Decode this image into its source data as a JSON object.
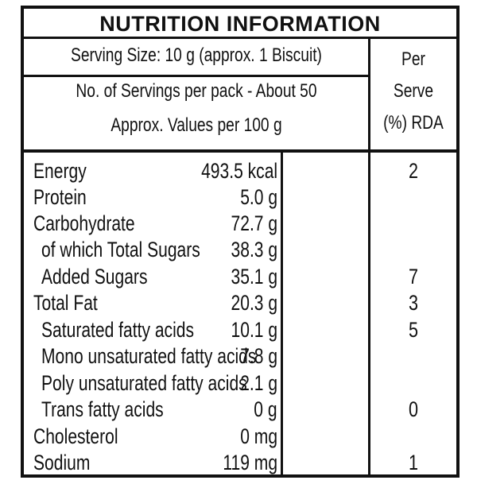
{
  "title": "NUTRITION INFORMATION",
  "header": {
    "serving_size": "Serving Size: 10 g (approx. 1 Biscuit)",
    "servings_per_pack": "No. of Servings per pack - About 50",
    "approx_values": "Approx. Values per 100 g",
    "rda_line1": "Per",
    "rda_line2": "Serve",
    "rda_line3": "(%) RDA"
  },
  "rows": [
    {
      "label": "Energy",
      "value": "493.5 kcal",
      "rda": "2"
    },
    {
      "label": "Protein",
      "value": "5.0 g",
      "rda": ""
    },
    {
      "label": "Carbohydrate",
      "value": "72.7 g",
      "rda": ""
    },
    {
      "label": "of which Total Sugars",
      "value": "38.3 g",
      "rda": ""
    },
    {
      "label": "Added Sugars",
      "value": "35.1 g",
      "rda": "7"
    },
    {
      "label": "Total Fat",
      "value": "20.3 g",
      "rda": "3"
    },
    {
      "label": "Saturated fatty acids",
      "value": "10.1 g",
      "rda": "5"
    },
    {
      "label": "Mono unsaturated fatty acids",
      "value": "7.8 g",
      "rda": ""
    },
    {
      "label": "Poly unsaturated fatty acids",
      "value": "2.1 g",
      "rda": ""
    },
    {
      "label": "Trans fatty acids",
      "value": "0 g",
      "rda": "0"
    },
    {
      "label": "Cholesterol",
      "value": "0 mg",
      "rda": ""
    },
    {
      "label": "Sodium",
      "value": "119 mg",
      "rda": "1"
    }
  ]
}
